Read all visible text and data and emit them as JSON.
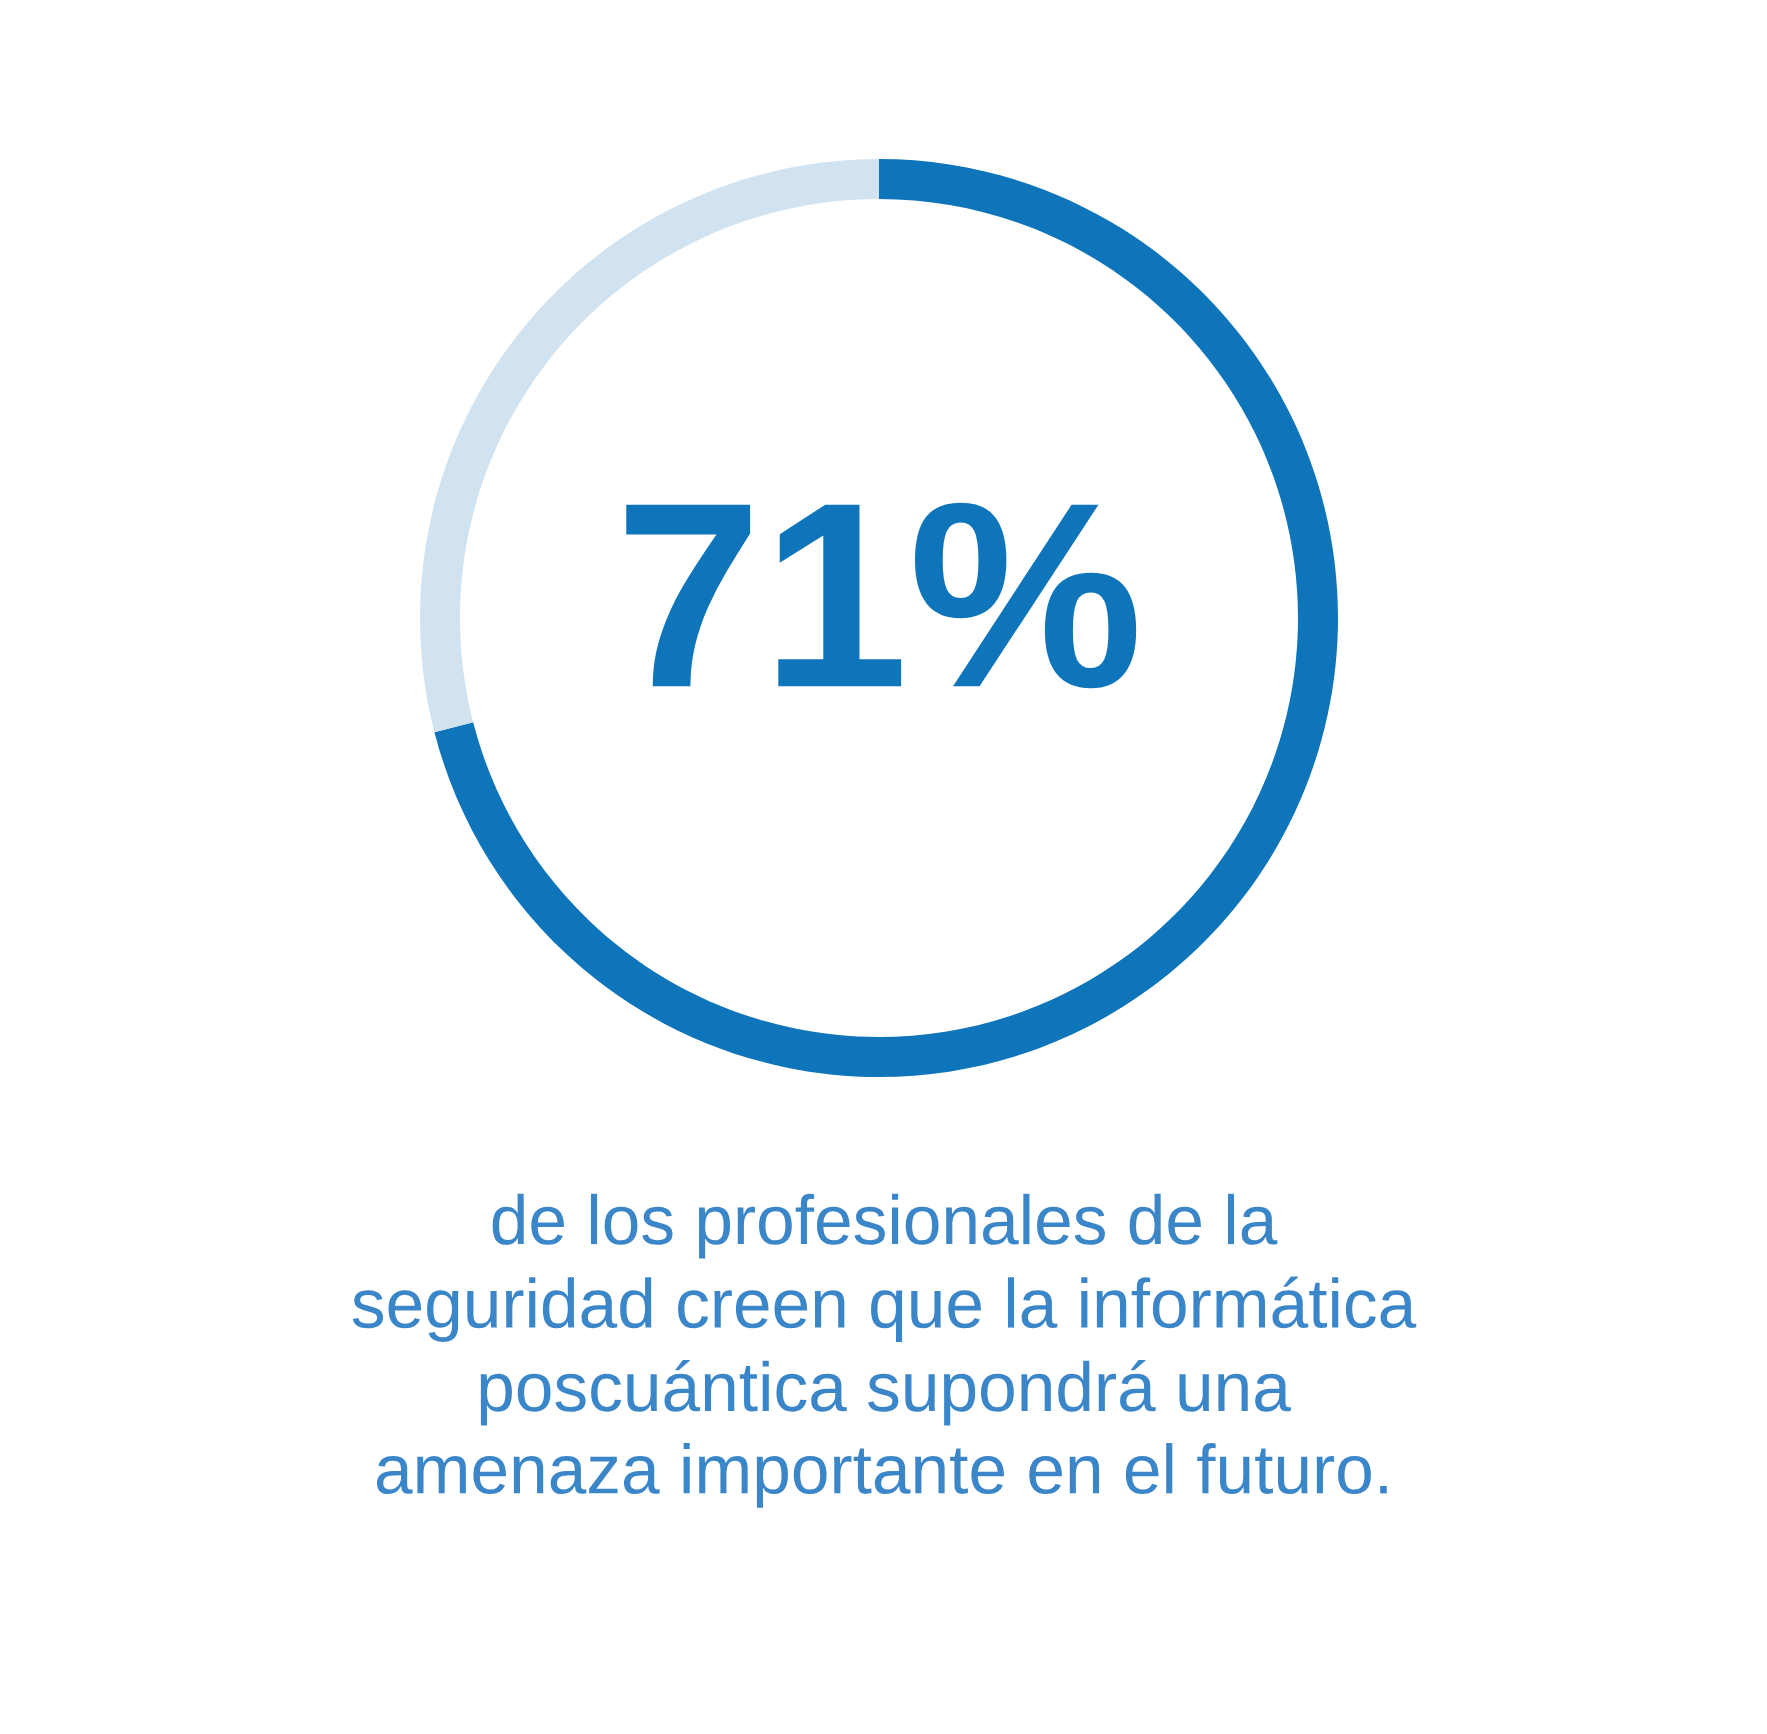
{
  "chart_data": {
    "type": "donut",
    "categories": [
      null,
      null
    ],
    "values": [
      71,
      29
    ],
    "colors": [
      "#0f75ba",
      "#d1e3f0"
    ],
    "value_labels": [
      "71%",
      null
    ],
    "annotations": [
      "de los profesionales de la\nseguridad creen que la informática\nposcuántica supondrá una\namenaza importante en el futuro."
    ]
  }
}
